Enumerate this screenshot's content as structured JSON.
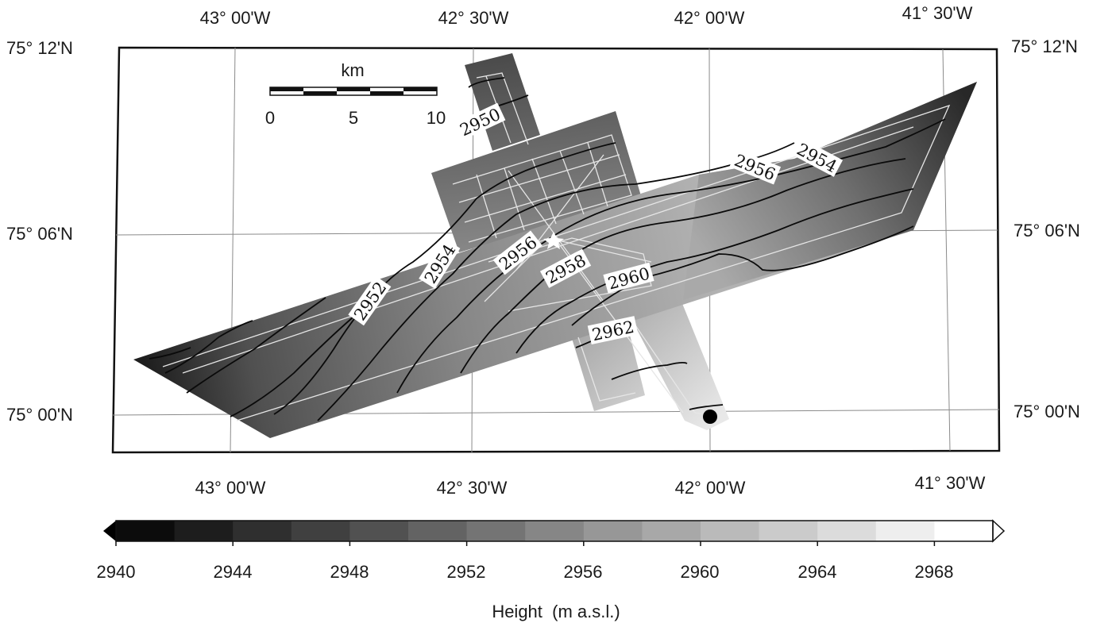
{
  "map": {
    "lon_labels_top": [
      "43° 00'W",
      "42° 30'W",
      "42° 00'W",
      "41° 30'W"
    ],
    "lon_labels_bottom": [
      "43° 00'W",
      "42° 30'W",
      "42° 00'W",
      "41° 30'W"
    ],
    "lat_labels_left": [
      "75° 12'N",
      "75° 06'N",
      "75° 00'N"
    ],
    "lat_labels_right": [
      "75° 12'N",
      "75° 06'N",
      "75° 00'N"
    ],
    "scale_bar": {
      "unit": "km",
      "ticks": [
        "0",
        "5",
        "10"
      ]
    },
    "contour_labels": [
      "2950",
      "2952",
      "2954",
      "2956",
      "2958",
      "2960",
      "2962",
      "2954",
      "2956"
    ],
    "colorbar": {
      "title": "Height  (m a.s.l.)",
      "ticks": [
        "2940",
        "2944",
        "2948",
        "2952",
        "2956",
        "2960",
        "2964",
        "2968"
      ],
      "range": [
        2940,
        2970
      ],
      "step": 2
    }
  }
}
